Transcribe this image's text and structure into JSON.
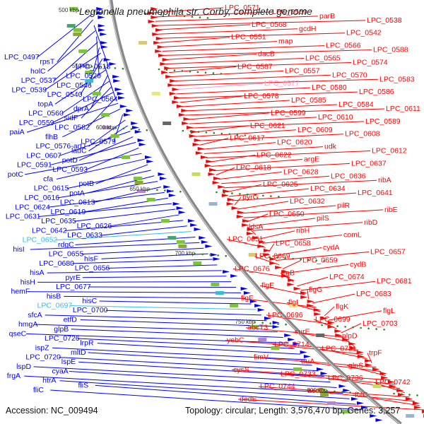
{
  "title": "Legionella pneumophila str. Corby, complete genome",
  "footer": {
    "accession": "Accession: NC_009494",
    "stats": "Topology: circular; Length: 3,576,470 bp; Genes: 3,257"
  },
  "colors": {
    "plus_strand": "#ff0000",
    "minus_strand": "#0000ff",
    "highlight": "#33bbee",
    "backbone": "#888888",
    "tick": "#228822"
  },
  "scale_marks": [
    "500 kbp",
    "550 kbp",
    "600 kbp",
    "650 kbp",
    "700 kbp",
    "750 kbp",
    "800 kbp"
  ],
  "left_labels": [
    "LPC_0497",
    "rpsT",
    "LPC_0518",
    "holC",
    "LPC_0520",
    "LPC_0537",
    "LPC_0546",
    "LPC_0539",
    "LPC_0540",
    "LPC_0564",
    "topA",
    "dprA",
    "LPC_0560",
    "sidF",
    "LPC_0559",
    "LPC_0582",
    "paiA",
    "flhB",
    "LPC_0579",
    "LPC_0576-artJ",
    "ladC",
    "LPC_0607",
    "potD",
    "LPC_0591",
    "LPC_0593",
    "potC",
    "cfa",
    "potB",
    "LPC_0615",
    "potA",
    "LPC_0616",
    "LPC_0613",
    "LPC_0624",
    "LPC_0619",
    "LPC_0631",
    "LPC_0635",
    "LPC_0626",
    "LPC_0642",
    "LPC_0633",
    "LPC_0652",
    "rdgC",
    "hisI",
    "LPC_0655",
    "hisF",
    "LPC_0680",
    "LPC_0656",
    "hisA",
    "pyrE",
    "hisH",
    "LPC_0677",
    "hemF",
    "hisB",
    "hisC",
    "LPC_0697",
    "LPC_0700",
    "sfcA",
    "etfD",
    "hmgA",
    "glpB",
    "qseC",
    "LPC_0726",
    "lrpR",
    "ispZ",
    "mltD",
    "LPC_0720",
    "lspE",
    "lspD",
    "cyaA",
    "frgA",
    "htrA",
    "fliS",
    "fliC"
  ],
  "right_labels": [
    "LPC_0571",
    "LPC_0569",
    "parB",
    "LPC_0538",
    "LPC_0568",
    "gcdH",
    "LPC_0542",
    "LPC_0551",
    "map",
    "LPC_0566",
    "LPC_0588",
    "dacB",
    "LPC_0565",
    "LPC_0574",
    "LPC_0587",
    "LPC_0557",
    "LPC_0570",
    "LPC_0583",
    "LPC_0577",
    "LPC_0580",
    "LPC_0586",
    "LPC_0578",
    "LPC_0585",
    "LPC_0584",
    "LPC_0611",
    "LPC_0599",
    "LPC_0610",
    "LPC_0589",
    "LPC_0621",
    "LPC_0609",
    "LPC_0608",
    "LPC_0617",
    "LPC_0620",
    "udk",
    "LPC_0612",
    "LPC_0622",
    "argE",
    "LPC_0637",
    "LPC_0618",
    "LPC_0628",
    "LPC_0636",
    "ribA",
    "LPC_0625",
    "LPC_0634",
    "LPC_0641",
    "pyrG",
    "LPC_0632",
    "pilR",
    "ribE",
    "LPC_0650",
    "pilS",
    "ribD",
    "ldsA",
    "ribH",
    "comL",
    "LPC_0651",
    "LPC_0658",
    "cydA",
    "LPC_0657",
    "LPC_0669",
    "LPC_0659",
    "cydB",
    "LPC_0676",
    "flgB",
    "LPC_0674",
    "LPC_0681",
    "flgE",
    "flgG",
    "LPC_0683",
    "flgF",
    "flgI",
    "flgK",
    "flgL",
    "LPC_0696",
    "LPC_0699",
    "LPC_0703",
    "abcT3",
    "surE",
    "nlpD",
    "yebC",
    "LPC_0714",
    "LPC_0721",
    "trpF",
    "fimV",
    "truA",
    "glnS",
    "cysS",
    "LPC_0733",
    "LPC_0736",
    "LPC_0742",
    "LPC_0744",
    "accD",
    "folC",
    "dedE"
  ]
}
